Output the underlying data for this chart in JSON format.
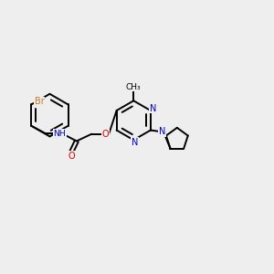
{
  "background_color": "#eeeeee",
  "atom_colors": {
    "C": "#000000",
    "N": "#0000cc",
    "O": "#dd0000",
    "Br": "#cc7722",
    "H": "#007777"
  },
  "bond_color": "#000000",
  "figsize": [
    3.0,
    3.0
  ],
  "dpi": 100
}
